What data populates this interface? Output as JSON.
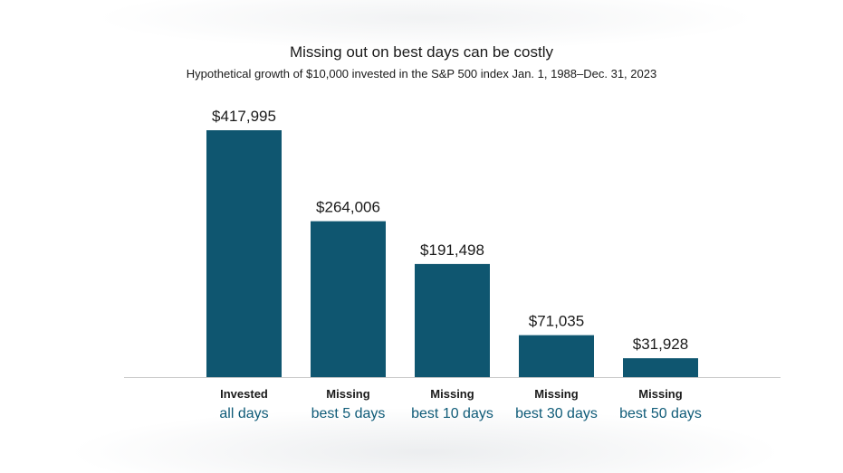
{
  "colors": {
    "bar": "#0f5670",
    "category_line2": "#0f5b78",
    "baseline": "#c8c8c8",
    "text": "#1a1a1a"
  },
  "chart_data": {
    "type": "bar",
    "title": "Missing out on best days can be costly",
    "subtitle": "Hypothetical growth of $10,000 invested in the S&P 500 index Jan. 1, 1988–Dec. 31, 2023",
    "categories": [
      {
        "line1": "Invested",
        "line2": "all days"
      },
      {
        "line1": "Missing",
        "line2": "best 5 days"
      },
      {
        "line1": "Missing",
        "line2": "best 10 days"
      },
      {
        "line1": "Missing",
        "line2": "best 30 days"
      },
      {
        "line1": "Missing",
        "line2": "best 50 days"
      }
    ],
    "values": [
      417995,
      264006,
      191498,
      71035,
      31928
    ],
    "value_labels": [
      "$417,995",
      "$264,006",
      "$191,498",
      "$71,035",
      "$31,928"
    ],
    "ylim": [
      0,
      417995
    ],
    "grid": false,
    "legend": "none"
  }
}
